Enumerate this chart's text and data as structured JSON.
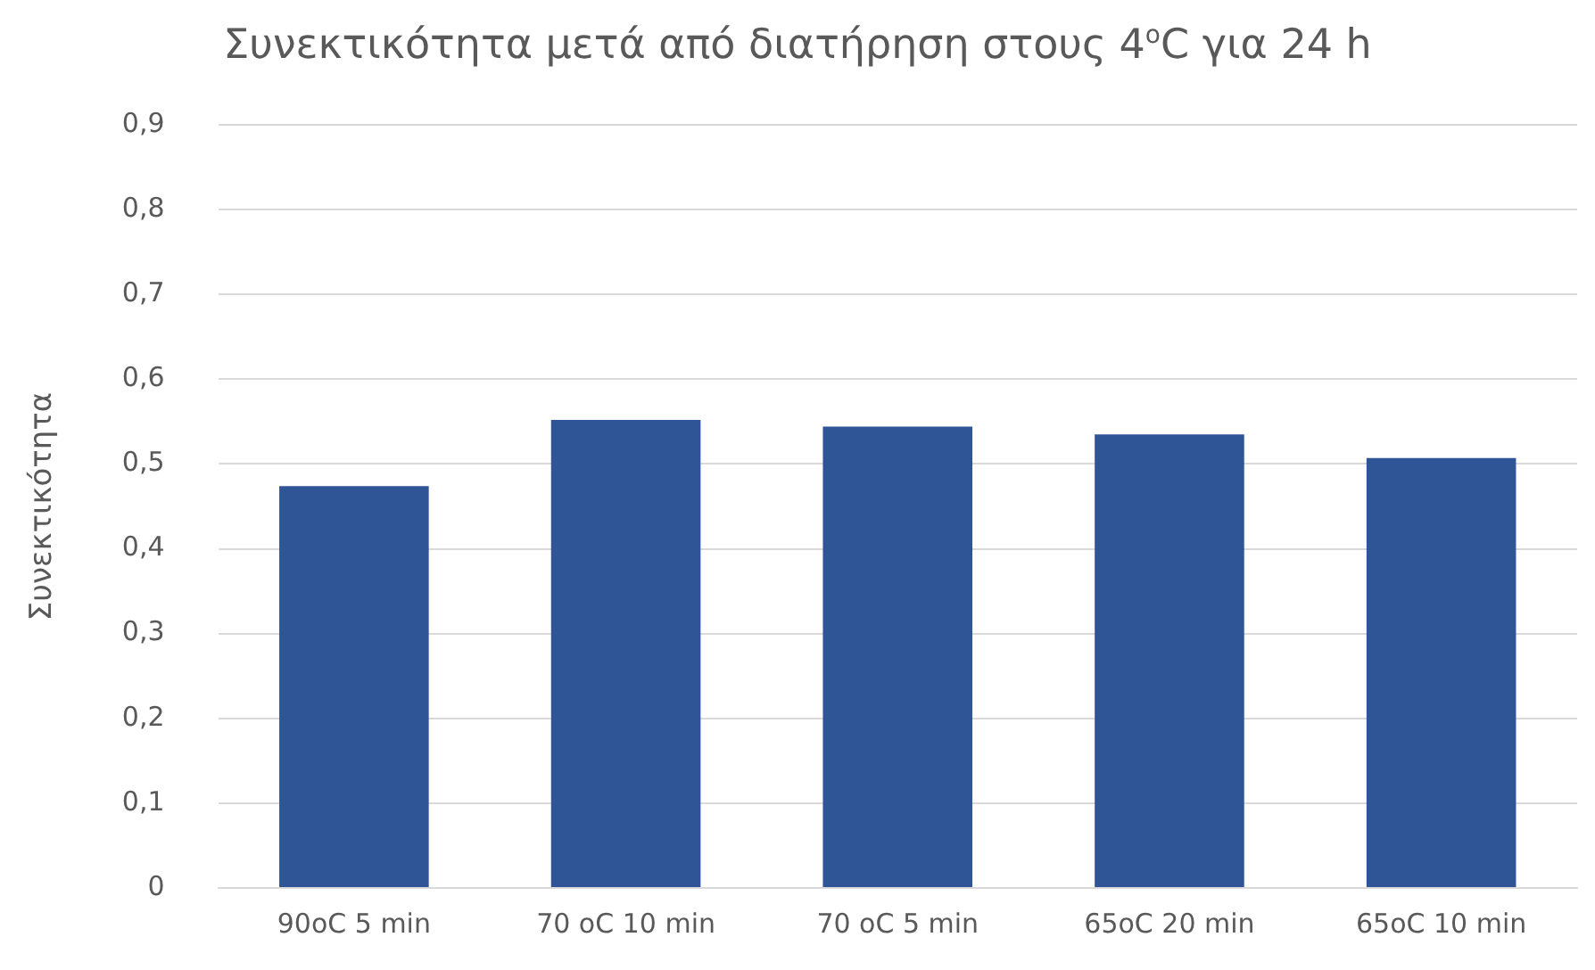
{
  "chart_data": {
    "type": "bar",
    "title": "Συνεκτικότητα μετά από διατήρηση στους 4$^{o}$C για 24 h",
    "ylabel": "Συνεκτικότητα",
    "categories": [
      "90oC 5 min",
      "70 oC 10 min",
      "70 oC 5 min",
      "65oC 20 min",
      "65oC 10 min"
    ],
    "values": [
      0.474,
      0.552,
      0.544,
      0.535,
      0.507
    ],
    "color": "#2f5597",
    "ylim": [
      0,
      0.9
    ],
    "yticks": [
      {
        "value": 0,
        "label": "0"
      },
      {
        "value": 0.1,
        "label": "0,1"
      },
      {
        "value": 0.2,
        "label": "0,2"
      },
      {
        "value": 0.3,
        "label": "0,3"
      },
      {
        "value": 0.4,
        "label": "0,4"
      },
      {
        "value": 0.5,
        "label": "0,5"
      },
      {
        "value": 0.6,
        "label": "0,6"
      },
      {
        "value": 0.7,
        "label": "0,7"
      },
      {
        "value": 0.8,
        "label": "0,8"
      },
      {
        "value": 0.9,
        "label": "0,9"
      }
    ],
    "grid": "y"
  }
}
